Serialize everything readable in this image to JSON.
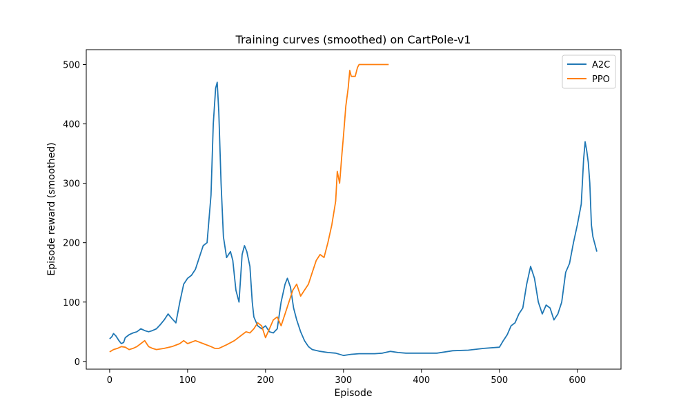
{
  "chart_data": {
    "type": "line",
    "title": "Training curves (smoothed) on CartPole-v1",
    "xlabel": "Episode",
    "ylabel": "Episode reward (smoothed)",
    "xlim": [
      -30,
      656
    ],
    "ylim": [
      -13,
      525
    ],
    "xticks": [
      0,
      100,
      200,
      300,
      400,
      500,
      600
    ],
    "yticks": [
      0,
      100,
      200,
      300,
      400,
      500
    ],
    "grid": false,
    "legend_position": "top-right",
    "series": [
      {
        "name": "A2C",
        "color": "#1f77b4",
        "points": [
          [
            0,
            38
          ],
          [
            3,
            42
          ],
          [
            5,
            47
          ],
          [
            8,
            43
          ],
          [
            12,
            35
          ],
          [
            15,
            30
          ],
          [
            18,
            32
          ],
          [
            20,
            40
          ],
          [
            25,
            45
          ],
          [
            30,
            48
          ],
          [
            35,
            50
          ],
          [
            40,
            55
          ],
          [
            45,
            52
          ],
          [
            50,
            50
          ],
          [
            55,
            52
          ],
          [
            60,
            55
          ],
          [
            65,
            62
          ],
          [
            70,
            70
          ],
          [
            75,
            80
          ],
          [
            80,
            72
          ],
          [
            85,
            65
          ],
          [
            90,
            100
          ],
          [
            95,
            130
          ],
          [
            100,
            140
          ],
          [
            105,
            145
          ],
          [
            110,
            155
          ],
          [
            115,
            175
          ],
          [
            120,
            195
          ],
          [
            125,
            200
          ],
          [
            130,
            280
          ],
          [
            133,
            400
          ],
          [
            136,
            460
          ],
          [
            138,
            470
          ],
          [
            140,
            420
          ],
          [
            143,
            300
          ],
          [
            146,
            210
          ],
          [
            150,
            175
          ],
          [
            155,
            185
          ],
          [
            158,
            170
          ],
          [
            162,
            120
          ],
          [
            166,
            100
          ],
          [
            170,
            180
          ],
          [
            173,
            195
          ],
          [
            176,
            185
          ],
          [
            180,
            160
          ],
          [
            183,
            100
          ],
          [
            185,
            75
          ],
          [
            190,
            60
          ],
          [
            195,
            55
          ],
          [
            200,
            60
          ],
          [
            205,
            50
          ],
          [
            210,
            48
          ],
          [
            215,
            55
          ],
          [
            220,
            100
          ],
          [
            225,
            130
          ],
          [
            228,
            140
          ],
          [
            232,
            125
          ],
          [
            236,
            90
          ],
          [
            240,
            70
          ],
          [
            245,
            50
          ],
          [
            250,
            35
          ],
          [
            255,
            25
          ],
          [
            260,
            20
          ],
          [
            270,
            17
          ],
          [
            280,
            15
          ],
          [
            290,
            14
          ],
          [
            300,
            10
          ],
          [
            310,
            12
          ],
          [
            320,
            13
          ],
          [
            330,
            13
          ],
          [
            340,
            13
          ],
          [
            350,
            14
          ],
          [
            360,
            17
          ],
          [
            370,
            15
          ],
          [
            380,
            14
          ],
          [
            400,
            14
          ],
          [
            420,
            14
          ],
          [
            440,
            18
          ],
          [
            460,
            19
          ],
          [
            480,
            22
          ],
          [
            500,
            24
          ],
          [
            505,
            35
          ],
          [
            510,
            45
          ],
          [
            515,
            60
          ],
          [
            520,
            65
          ],
          [
            525,
            80
          ],
          [
            530,
            90
          ],
          [
            535,
            130
          ],
          [
            540,
            160
          ],
          [
            545,
            140
          ],
          [
            550,
            100
          ],
          [
            555,
            80
          ],
          [
            560,
            95
          ],
          [
            565,
            90
          ],
          [
            570,
            70
          ],
          [
            575,
            80
          ],
          [
            580,
            100
          ],
          [
            585,
            150
          ],
          [
            590,
            165
          ],
          [
            595,
            200
          ],
          [
            600,
            230
          ],
          [
            605,
            265
          ],
          [
            608,
            340
          ],
          [
            610,
            370
          ],
          [
            612,
            355
          ],
          [
            614,
            335
          ],
          [
            616,
            300
          ],
          [
            618,
            230
          ],
          [
            620,
            210
          ],
          [
            625,
            185
          ]
        ]
      },
      {
        "name": "PPO",
        "color": "#ff7f0e",
        "points": [
          [
            0,
            16
          ],
          [
            5,
            20
          ],
          [
            10,
            22
          ],
          [
            15,
            25
          ],
          [
            20,
            24
          ],
          [
            25,
            20
          ],
          [
            30,
            22
          ],
          [
            35,
            25
          ],
          [
            40,
            30
          ],
          [
            45,
            35
          ],
          [
            50,
            25
          ],
          [
            55,
            22
          ],
          [
            60,
            20
          ],
          [
            70,
            22
          ],
          [
            80,
            25
          ],
          [
            90,
            30
          ],
          [
            95,
            35
          ],
          [
            100,
            30
          ],
          [
            110,
            35
          ],
          [
            120,
            30
          ],
          [
            130,
            25
          ],
          [
            135,
            22
          ],
          [
            140,
            22
          ],
          [
            150,
            28
          ],
          [
            160,
            35
          ],
          [
            170,
            45
          ],
          [
            175,
            50
          ],
          [
            180,
            48
          ],
          [
            185,
            55
          ],
          [
            190,
            65
          ],
          [
            195,
            60
          ],
          [
            200,
            40
          ],
          [
            205,
            55
          ],
          [
            210,
            70
          ],
          [
            215,
            75
          ],
          [
            220,
            60
          ],
          [
            225,
            80
          ],
          [
            230,
            100
          ],
          [
            235,
            120
          ],
          [
            240,
            130
          ],
          [
            245,
            110
          ],
          [
            250,
            120
          ],
          [
            255,
            130
          ],
          [
            260,
            150
          ],
          [
            265,
            170
          ],
          [
            270,
            180
          ],
          [
            275,
            175
          ],
          [
            280,
            200
          ],
          [
            285,
            230
          ],
          [
            290,
            270
          ],
          [
            292,
            320
          ],
          [
            295,
            300
          ],
          [
            298,
            350
          ],
          [
            300,
            380
          ],
          [
            303,
            430
          ],
          [
            306,
            460
          ],
          [
            308,
            490
          ],
          [
            310,
            480
          ],
          [
            315,
            480
          ],
          [
            318,
            495
          ],
          [
            320,
            500
          ],
          [
            330,
            500
          ],
          [
            340,
            500
          ],
          [
            358,
            500
          ]
        ]
      }
    ]
  }
}
